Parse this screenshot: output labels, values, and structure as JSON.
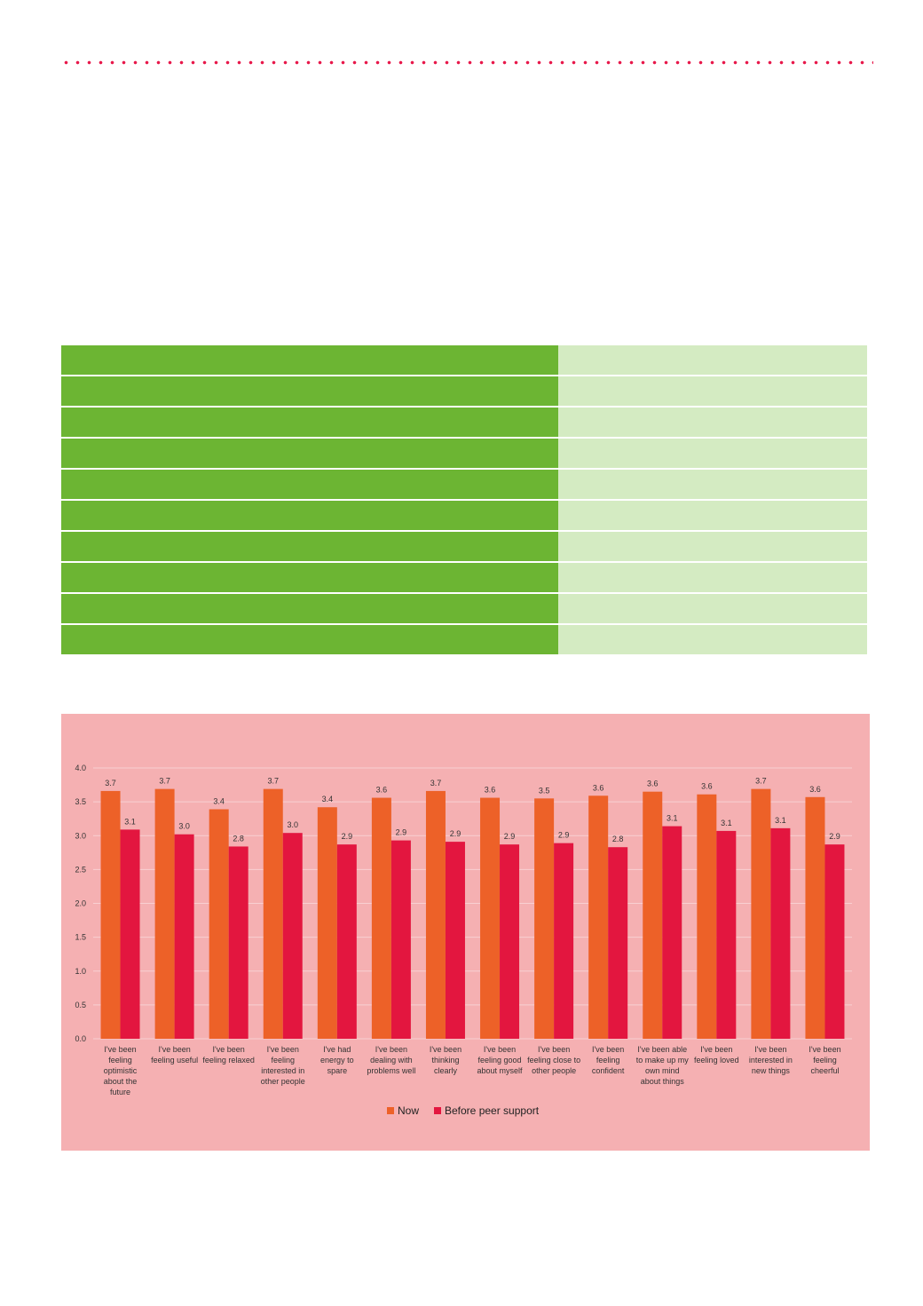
{
  "colors": {
    "dots": "#e8174a",
    "table_left": "#6cb533",
    "table_right": "#d4ebc2",
    "panel_bg": "#f5b0b2",
    "now": "#ed6128",
    "before": "#e3163f",
    "gridline": "#f8d0d2"
  },
  "table": {
    "row_count": 10
  },
  "chart_data": {
    "type": "bar",
    "categories": [
      "I've been feeling optimistic about the future",
      "I've been feeling useful",
      "I've been feeling relaxed",
      "I've been feeling interested in other people",
      "I've had energy to spare",
      "I've been dealing with problems well",
      "I've been thinking clearly",
      "I've been feeling good about myself",
      "I've been feeling close to other people",
      "I've been feeling confident",
      "I've been able to make up my own mind about things",
      "I've been feeling loved",
      "I've been interested in new things",
      "I've been feeling cheerful"
    ],
    "category_lines": [
      [
        "I've been",
        "feeling",
        "optimistic",
        "about the",
        "future"
      ],
      [
        "I've been",
        "feeling useful"
      ],
      [
        "I've been",
        "feeling relaxed"
      ],
      [
        "I've been",
        "feeling",
        "interested in",
        "other people"
      ],
      [
        "I've had",
        "energy to",
        "spare"
      ],
      [
        "I've been",
        "dealing with",
        "problems well"
      ],
      [
        "I've been",
        "thinking",
        "clearly"
      ],
      [
        "I've been",
        "feeling good",
        "about myself"
      ],
      [
        "I've been",
        "feeling close to",
        "other people"
      ],
      [
        "I've been",
        "feeling",
        "confident"
      ],
      [
        "I've been able",
        "to make up my",
        "own mind",
        "about things"
      ],
      [
        "I've been",
        "feeling loved"
      ],
      [
        "I've been",
        "interested in",
        "new things"
      ],
      [
        "I've been",
        "feeling",
        "cheerful"
      ]
    ],
    "series": [
      {
        "name": "Now",
        "values": [
          3.66,
          3.69,
          3.39,
          3.69,
          3.42,
          3.56,
          3.66,
          3.56,
          3.55,
          3.59,
          3.65,
          3.61,
          3.69,
          3.57
        ],
        "labels": [
          "3.7",
          "3.7",
          "3.4",
          "3.7",
          "3.4",
          "3.6",
          "3.7",
          "3.6",
          "3.5",
          "3.6",
          "3.6",
          "3.6",
          "3.7",
          "3.6"
        ]
      },
      {
        "name": "Before peer support",
        "values": [
          3.09,
          3.02,
          2.84,
          3.04,
          2.87,
          2.93,
          2.91,
          2.87,
          2.89,
          2.83,
          3.14,
          3.07,
          3.11,
          2.87
        ],
        "labels": [
          "3.1",
          "3.0",
          "2.8",
          "3.0",
          "2.9",
          "2.9",
          "2.9",
          "2.9",
          "2.9",
          "2.8",
          "3.1",
          "3.1",
          "3.1",
          "2.9"
        ]
      }
    ],
    "yticks": [
      "0.0",
      "0.5",
      "1.0",
      "1.5",
      "2.0",
      "2.5",
      "3.0",
      "3.5",
      "4.0"
    ],
    "ylim": [
      0,
      4
    ],
    "grid": true,
    "legend": "bottom-center"
  }
}
